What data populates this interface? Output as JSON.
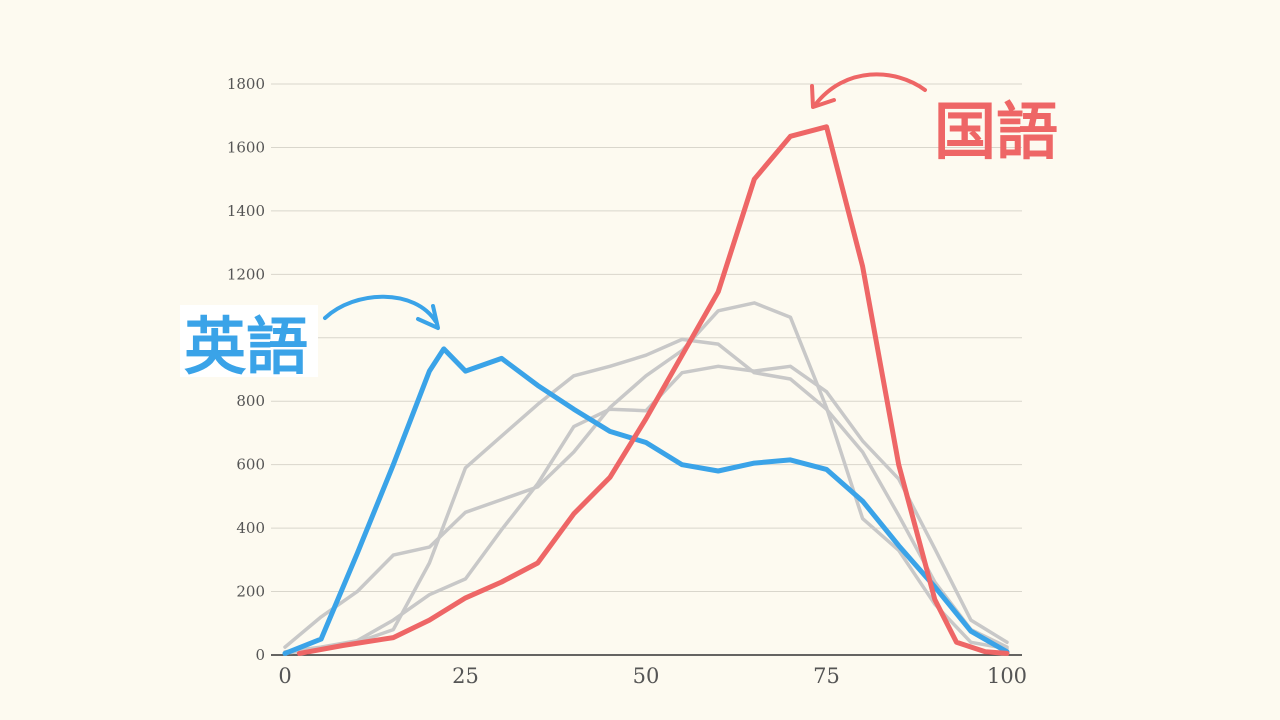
{
  "chart_data": {
    "type": "line",
    "title": "",
    "xlabel": "",
    "ylabel": "",
    "xlim": [
      0,
      100
    ],
    "ylim": [
      0,
      1800
    ],
    "grid": true,
    "x_ticks": [
      0,
      25,
      50,
      75,
      100
    ],
    "y_ticks": [
      0,
      200,
      400,
      600,
      800,
      1000,
      1200,
      1400,
      1600,
      1800
    ],
    "x": [
      0,
      5,
      10,
      15,
      20,
      25,
      30,
      35,
      40,
      45,
      50,
      55,
      60,
      65,
      70,
      75,
      80,
      85,
      90,
      95,
      100
    ],
    "series": [
      {
        "name": "",
        "color": "#c8c8c8",
        "values": [
          25,
          120,
          200,
          315,
          340,
          450,
          490,
          530,
          640,
          780,
          880,
          960,
          1085,
          1110,
          1065,
          780,
          430,
          330,
          160,
          40,
          20
        ]
      },
      {
        "name": "",
        "color": "#c8c8c8",
        "values": [
          10,
          25,
          45,
          110,
          190,
          240,
          395,
          540,
          720,
          775,
          770,
          890,
          910,
          895,
          910,
          830,
          675,
          555,
          335,
          110,
          40
        ]
      },
      {
        "name": "",
        "color": "#c8c8c8",
        "values": [
          5,
          20,
          40,
          80,
          290,
          590,
          690,
          790,
          880,
          910,
          945,
          995,
          980,
          890,
          870,
          775,
          640,
          440,
          230,
          80,
          25
        ]
      },
      {
        "name": "英語",
        "color": "#3aa3e8",
        "values": [
          5,
          50,
          320,
          600,
          895,
          965,
          895,
          935,
          850,
          775,
          705,
          670,
          600,
          580,
          605,
          615,
          585,
          485,
          345,
          215,
          75,
          10
        ],
        "x": [
          0,
          5,
          10,
          15,
          20,
          22,
          25,
          30,
          35,
          40,
          45,
          50,
          55,
          60,
          65,
          70,
          75,
          80,
          85,
          90,
          95,
          100
        ]
      },
      {
        "name": "国語",
        "color": "#ee6666",
        "values": [
          5,
          30,
          55,
          110,
          180,
          230,
          290,
          445,
          560,
          745,
          945,
          1145,
          1500,
          1635,
          1665,
          1225,
          600,
          175,
          40,
          10,
          5
        ],
        "x": [
          2,
          8,
          15,
          20,
          25,
          30,
          35,
          40,
          45,
          50,
          55,
          60,
          65,
          70,
          75,
          80,
          85,
          90,
          93,
          97,
          100
        ]
      }
    ],
    "annotations": [
      {
        "text": "英語",
        "color": "#3aa3e8"
      },
      {
        "text": "国語",
        "color": "#ee6666"
      }
    ]
  }
}
